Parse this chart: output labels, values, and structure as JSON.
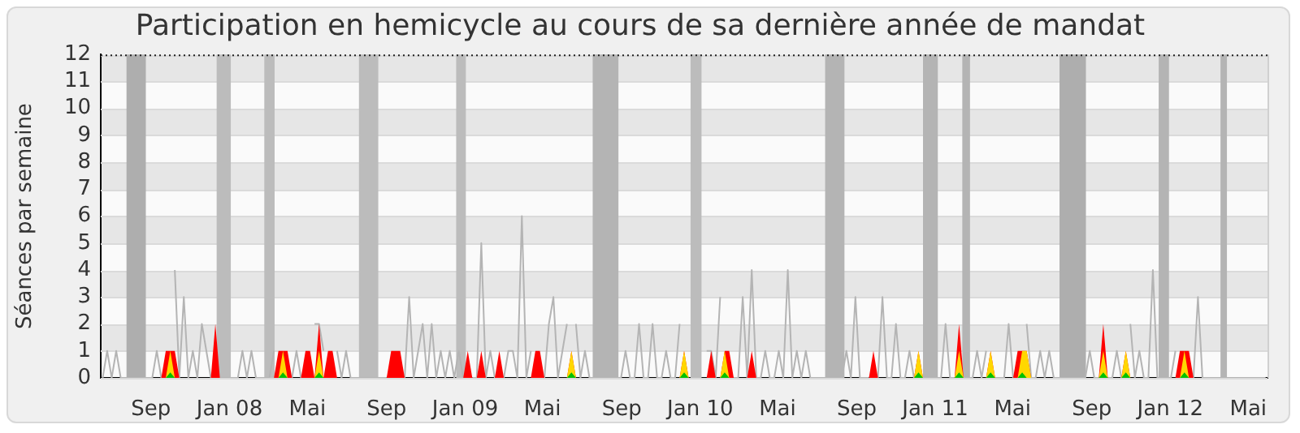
{
  "chart_data": {
    "type": "area",
    "title": "Participation en hemicycle au cours de sa dernière année de mandat",
    "ylabel": "Séances par semaine",
    "x": [
      "2007-06-18",
      "2007-06-25",
      "2007-07-02",
      "2007-07-09",
      "2007-07-16",
      "2007-07-23",
      "2007-07-30",
      "2007-08-06",
      "2007-08-13",
      "2007-08-20",
      "2007-08-27",
      "2007-09-03",
      "2007-09-10",
      "2007-09-17",
      "2007-09-24",
      "2007-10-01",
      "2007-10-08",
      "2007-10-15",
      "2007-10-22",
      "2007-10-29",
      "2007-11-05",
      "2007-11-12",
      "2007-11-19",
      "2007-11-26",
      "2007-12-03",
      "2007-12-10",
      "2007-12-17",
      "2007-12-24",
      "2007-12-31",
      "2008-01-07",
      "2008-01-14",
      "2008-01-21",
      "2008-01-28",
      "2008-02-04",
      "2008-02-11",
      "2008-02-18",
      "2008-02-25",
      "2008-03-03",
      "2008-03-10",
      "2008-03-17",
      "2008-03-24",
      "2008-03-31",
      "2008-04-07",
      "2008-04-14",
      "2008-04-21",
      "2008-04-28",
      "2008-05-05",
      "2008-05-12",
      "2008-05-19",
      "2008-05-26",
      "2008-06-02",
      "2008-06-09",
      "2008-06-16",
      "2008-06-23",
      "2008-06-30",
      "2008-07-07",
      "2008-07-14",
      "2008-07-21",
      "2008-07-28",
      "2008-08-04",
      "2008-08-11",
      "2008-08-18",
      "2008-08-25",
      "2008-09-01",
      "2008-09-08",
      "2008-09-15",
      "2008-09-22",
      "2008-09-29",
      "2008-10-06",
      "2008-10-13",
      "2008-10-20",
      "2008-10-27",
      "2008-11-03",
      "2008-11-10",
      "2008-11-17",
      "2008-11-24",
      "2008-12-01",
      "2008-12-08",
      "2008-12-15",
      "2008-12-22",
      "2008-12-29",
      "2009-01-05",
      "2009-01-12",
      "2009-01-19",
      "2009-01-26",
      "2009-02-02",
      "2009-02-09",
      "2009-02-16",
      "2009-02-23",
      "2009-03-02",
      "2009-03-09",
      "2009-03-16",
      "2009-03-23",
      "2009-03-30",
      "2009-04-06",
      "2009-04-13",
      "2009-04-20",
      "2009-04-27",
      "2009-05-04",
      "2009-05-11",
      "2009-05-18",
      "2009-05-25",
      "2009-06-01",
      "2009-06-08",
      "2009-06-15",
      "2009-06-22",
      "2009-06-29",
      "2009-07-06",
      "2009-07-13",
      "2009-07-20",
      "2009-07-27",
      "2009-08-03",
      "2009-08-10",
      "2009-08-17",
      "2009-08-24",
      "2009-08-31",
      "2009-09-07",
      "2009-09-14",
      "2009-09-21",
      "2009-09-28",
      "2009-10-05",
      "2009-10-12",
      "2009-10-19",
      "2009-10-26",
      "2009-11-02",
      "2009-11-09",
      "2009-11-16",
      "2009-11-23",
      "2009-11-30",
      "2009-12-07",
      "2009-12-14",
      "2009-12-21",
      "2009-12-28",
      "2010-01-04",
      "2010-01-11",
      "2010-01-18",
      "2010-01-25",
      "2010-02-01",
      "2010-02-08",
      "2010-02-15",
      "2010-02-22",
      "2010-03-01",
      "2010-03-08",
      "2010-03-15",
      "2010-03-22",
      "2010-03-29",
      "2010-04-05",
      "2010-04-12",
      "2010-04-19",
      "2010-04-26",
      "2010-05-03",
      "2010-05-10",
      "2010-05-17",
      "2010-05-24",
      "2010-05-31",
      "2010-06-07",
      "2010-06-14",
      "2010-06-21",
      "2010-06-28",
      "2010-07-05",
      "2010-07-12",
      "2010-07-19",
      "2010-07-26",
      "2010-08-02",
      "2010-08-09",
      "2010-08-16",
      "2010-08-23",
      "2010-08-30",
      "2010-09-06",
      "2010-09-13",
      "2010-09-20",
      "2010-09-27",
      "2010-10-04",
      "2010-10-11",
      "2010-10-18",
      "2010-10-25",
      "2010-11-01",
      "2010-11-08",
      "2010-11-15",
      "2010-11-22",
      "2010-11-29",
      "2010-12-06",
      "2010-12-13",
      "2010-12-20",
      "2010-12-27",
      "2011-01-03",
      "2011-01-10",
      "2011-01-17",
      "2011-01-24",
      "2011-01-31",
      "2011-02-07",
      "2011-02-14",
      "2011-02-21",
      "2011-02-28",
      "2011-03-07",
      "2011-03-14",
      "2011-03-21",
      "2011-03-28",
      "2011-04-04",
      "2011-04-11",
      "2011-04-18",
      "2011-04-25",
      "2011-05-02",
      "2011-05-09",
      "2011-05-16",
      "2011-05-23",
      "2011-05-30",
      "2011-06-06",
      "2011-06-13",
      "2011-06-20",
      "2011-06-27",
      "2011-07-04",
      "2011-07-11",
      "2011-07-18",
      "2011-07-25",
      "2011-08-01",
      "2011-08-08",
      "2011-08-15",
      "2011-08-22",
      "2011-08-29",
      "2011-09-05",
      "2011-09-12",
      "2011-09-19",
      "2011-09-26",
      "2011-10-03",
      "2011-10-10",
      "2011-10-17",
      "2011-10-24",
      "2011-10-31",
      "2011-11-07",
      "2011-11-14",
      "2011-11-21",
      "2011-11-28",
      "2011-12-05",
      "2011-12-12",
      "2011-12-19",
      "2011-12-26",
      "2012-01-02",
      "2012-01-09",
      "2012-01-16",
      "2012-01-23",
      "2012-01-30",
      "2012-02-06",
      "2012-02-13",
      "2012-02-20",
      "2012-02-27",
      "2012-03-05",
      "2012-03-12",
      "2012-03-19",
      "2012-03-26",
      "2012-04-02",
      "2012-04-09",
      "2012-04-16",
      "2012-04-23",
      "2012-04-30",
      "2012-05-07",
      "2012-05-14",
      "2012-05-21",
      "2012-05-28"
    ],
    "series": [
      {
        "type": "line",
        "color": "#b4b4b4",
        "values": [
          0,
          1,
          0,
          1,
          0,
          0,
          0,
          0,
          0,
          0,
          0,
          0,
          1,
          0,
          null,
          null,
          4,
          0,
          3,
          0,
          1,
          0,
          2,
          1,
          0,
          null,
          0,
          0,
          0,
          0,
          0,
          1,
          0,
          1,
          0,
          0,
          0,
          0,
          1,
          null,
          null,
          null,
          0,
          1,
          0,
          null,
          null,
          2,
          2,
          1,
          null,
          null,
          1,
          0,
          1,
          0,
          0,
          0,
          0,
          0,
          0,
          0,
          0,
          0,
          null,
          null,
          null,
          0,
          3,
          0,
          1,
          2,
          0,
          2,
          0,
          1,
          0,
          1,
          0,
          1,
          0,
          null,
          0,
          0,
          5,
          0,
          1,
          0,
          null,
          0,
          1,
          1,
          0,
          6,
          0,
          1,
          null,
          null,
          0,
          2,
          3,
          0,
          1,
          2,
          null,
          2,
          0,
          1,
          0,
          0,
          0,
          0,
          0,
          0,
          0,
          0,
          1,
          0,
          0,
          2,
          0,
          0,
          2,
          0,
          0,
          1,
          0,
          0,
          2,
          null,
          null,
          null,
          null,
          null,
          1,
          1,
          0,
          3,
          null,
          null,
          0,
          0,
          3,
          0,
          4,
          0,
          0,
          1,
          0,
          0,
          1,
          0,
          4,
          0,
          1,
          0,
          1,
          0,
          0,
          0,
          0,
          0,
          0,
          0,
          0,
          1,
          0,
          3,
          0,
          0,
          0,
          null,
          0,
          3,
          0,
          0,
          2,
          0,
          0,
          1,
          0,
          null,
          0,
          0,
          0,
          0,
          0,
          2,
          0,
          0,
          null,
          0,
          0,
          0,
          1,
          0,
          1,
          null,
          0,
          0,
          0,
          2,
          0,
          null,
          null,
          2,
          0,
          0,
          1,
          0,
          1,
          0,
          0,
          0,
          0,
          0,
          0,
          0,
          0,
          1,
          0,
          0,
          null,
          0,
          0,
          1,
          0,
          null,
          2,
          0,
          1,
          0,
          0,
          4,
          0,
          0,
          0,
          0,
          1,
          null,
          null,
          null,
          0,
          3,
          0,
          0,
          0,
          0,
          0,
          0,
          0,
          0,
          0,
          0,
          0,
          0,
          0,
          0,
          0
        ]
      },
      {
        "color": "#ff0000",
        "values": [
          0,
          0,
          0,
          0,
          0,
          0,
          0,
          0,
          0,
          0,
          0,
          0,
          0,
          0,
          1,
          1,
          1,
          0,
          0,
          0,
          0,
          0,
          0,
          0,
          0,
          2,
          0,
          0,
          0,
          0,
          0,
          0,
          0,
          0,
          0,
          0,
          0,
          0,
          0,
          1,
          1,
          1,
          0,
          0,
          0,
          1,
          1,
          0,
          2,
          0,
          1,
          1,
          0,
          0,
          0,
          0,
          0,
          0,
          0,
          0,
          0,
          0,
          0,
          0,
          1,
          1,
          1,
          0,
          0,
          0,
          0,
          0,
          0,
          0,
          0,
          0,
          0,
          0,
          0,
          0,
          0,
          1,
          0,
          0,
          1,
          0,
          0,
          0,
          1,
          0,
          0,
          0,
          0,
          0,
          0,
          0,
          1,
          1,
          0,
          0,
          0,
          0,
          0,
          0,
          1,
          0,
          0,
          0,
          0,
          0,
          0,
          0,
          0,
          0,
          0,
          0,
          0,
          0,
          0,
          0,
          0,
          0,
          0,
          0,
          0,
          0,
          0,
          0,
          0,
          1,
          0,
          0,
          0,
          0,
          0,
          1,
          0,
          0,
          1,
          1,
          0,
          0,
          0,
          0,
          1,
          0,
          0,
          0,
          0,
          0,
          0,
          0,
          0,
          0,
          0,
          0,
          0,
          0,
          0,
          0,
          0,
          0,
          0,
          0,
          0,
          0,
          0,
          0,
          0,
          0,
          0,
          1,
          0,
          0,
          0,
          0,
          0,
          0,
          0,
          0,
          0,
          1,
          0,
          0,
          0,
          0,
          0,
          0,
          0,
          0,
          2,
          0,
          0,
          0,
          0,
          0,
          0,
          1,
          0,
          0,
          0,
          0,
          0,
          1,
          1,
          1,
          0,
          0,
          0,
          0,
          0,
          0,
          0,
          0,
          0,
          0,
          0,
          0,
          0,
          0,
          0,
          0,
          2,
          0,
          0,
          0,
          0,
          1,
          0,
          0,
          0,
          0,
          0,
          0,
          0,
          0,
          0,
          0,
          0,
          1,
          1,
          1,
          0,
          0,
          0,
          0,
          0,
          0,
          0,
          0,
          0,
          0,
          0,
          0,
          0,
          0,
          0,
          0,
          0
        ]
      },
      {
        "color": "#ffd700",
        "values": [
          0,
          0,
          0,
          0,
          0,
          0,
          0,
          0,
          0,
          0,
          0,
          0,
          0,
          0,
          0,
          1,
          0,
          0,
          0,
          0,
          0,
          0,
          0,
          0,
          0,
          0,
          0,
          0,
          0,
          0,
          0,
          0,
          0,
          0,
          0,
          0,
          0,
          0,
          0,
          0,
          1,
          0,
          0,
          0,
          0,
          0,
          0,
          0,
          1,
          0,
          0,
          0,
          0,
          0,
          0,
          0,
          0,
          0,
          0,
          0,
          0,
          0,
          0,
          0,
          0,
          0,
          0,
          0,
          0,
          0,
          0,
          0,
          0,
          0,
          0,
          0,
          0,
          0,
          0,
          0,
          0,
          0,
          0,
          0,
          0,
          0,
          0,
          0,
          0,
          0,
          0,
          0,
          0,
          0,
          0,
          0,
          0,
          0,
          0,
          0,
          0,
          0,
          0,
          0,
          1,
          0,
          0,
          0,
          0,
          0,
          0,
          0,
          0,
          0,
          0,
          0,
          0,
          0,
          0,
          0,
          0,
          0,
          0,
          0,
          0,
          0,
          0,
          0,
          0,
          1,
          0,
          0,
          0,
          0,
          0,
          0,
          0,
          0,
          1,
          0,
          0,
          0,
          0,
          0,
          0,
          0,
          0,
          0,
          0,
          0,
          0,
          0,
          0,
          0,
          0,
          0,
          0,
          0,
          0,
          0,
          0,
          0,
          0,
          0,
          0,
          0,
          0,
          0,
          0,
          0,
          0,
          0,
          0,
          0,
          0,
          0,
          0,
          0,
          0,
          0,
          0,
          1,
          0,
          0,
          0,
          0,
          0,
          0,
          0,
          0,
          1,
          0,
          0,
          0,
          0,
          0,
          0,
          1,
          0,
          0,
          0,
          0,
          0,
          0,
          1,
          1,
          0,
          0,
          0,
          0,
          0,
          0,
          0,
          0,
          0,
          0,
          0,
          0,
          0,
          0,
          0,
          0,
          1,
          0,
          0,
          0,
          0,
          1,
          0,
          0,
          0,
          0,
          0,
          0,
          0,
          0,
          0,
          0,
          0,
          0,
          1,
          0,
          0,
          0,
          0,
          0,
          0,
          0,
          0,
          0,
          0,
          0,
          0,
          0,
          0,
          0,
          0,
          0,
          0
        ]
      },
      {
        "color": "#00c000",
        "values": [
          0,
          0,
          0,
          0,
          0,
          0,
          0,
          0,
          0,
          0,
          0,
          0,
          0,
          0,
          0,
          0.2,
          0,
          0,
          0,
          0,
          0,
          0,
          0,
          0,
          0,
          0,
          0,
          0,
          0,
          0,
          0,
          0,
          0,
          0,
          0,
          0,
          0,
          0,
          0,
          0,
          0.2,
          0,
          0,
          0,
          0,
          0,
          0,
          0,
          0.2,
          0,
          0,
          0,
          0,
          0,
          0,
          0,
          0,
          0,
          0,
          0,
          0,
          0,
          0,
          0,
          0,
          0,
          0,
          0,
          0,
          0,
          0,
          0,
          0,
          0,
          0,
          0,
          0,
          0,
          0,
          0,
          0,
          0,
          0,
          0,
          0,
          0,
          0,
          0,
          0,
          0,
          0,
          0,
          0,
          0,
          0,
          0,
          0,
          0,
          0,
          0,
          0,
          0,
          0,
          0,
          0.2,
          0,
          0,
          0,
          0,
          0,
          0,
          0,
          0,
          0,
          0,
          0,
          0,
          0,
          0,
          0,
          0,
          0,
          0,
          0,
          0,
          0,
          0,
          0,
          0,
          0.2,
          0,
          0,
          0,
          0,
          0,
          0,
          0,
          0,
          0.2,
          0,
          0,
          0,
          0,
          0,
          0,
          0,
          0,
          0,
          0,
          0,
          0,
          0,
          0,
          0,
          0,
          0,
          0,
          0,
          0,
          0,
          0,
          0,
          0,
          0,
          0,
          0,
          0,
          0,
          0,
          0,
          0,
          0,
          0,
          0,
          0,
          0,
          0,
          0,
          0,
          0,
          0,
          0.2,
          0,
          0,
          0,
          0,
          0,
          0,
          0,
          0,
          0.2,
          0,
          0,
          0,
          0,
          0,
          0,
          0.2,
          0,
          0,
          0,
          0,
          0,
          0,
          0.2,
          0,
          0,
          0,
          0,
          0,
          0,
          0,
          0,
          0,
          0,
          0,
          0,
          0,
          0,
          0,
          0,
          0,
          0.2,
          0,
          0,
          0,
          0,
          0.2,
          0,
          0,
          0,
          0,
          0,
          0,
          0,
          0,
          0,
          0,
          0,
          0,
          0.2,
          0,
          0,
          0,
          0,
          0,
          0,
          0,
          0,
          0,
          0,
          0,
          0,
          0,
          0,
          0,
          0,
          0,
          0
        ]
      }
    ],
    "xlim": [
      "2007-06-15",
      "2012-05-31"
    ],
    "xticks": [
      {
        "value": "2007-09-01",
        "label": "Sep"
      },
      {
        "value": "2008-01-01",
        "label": "Jan 08"
      },
      {
        "value": "2008-05-01",
        "label": "Mai"
      },
      {
        "value": "2008-09-01",
        "label": "Sep"
      },
      {
        "value": "2009-01-01",
        "label": "Jan 09"
      },
      {
        "value": "2009-05-01",
        "label": "Mai"
      },
      {
        "value": "2009-09-01",
        "label": "Sep"
      },
      {
        "value": "2010-01-01",
        "label": "Jan 10"
      },
      {
        "value": "2010-05-01",
        "label": "Mai"
      },
      {
        "value": "2010-09-01",
        "label": "Sep"
      },
      {
        "value": "2011-01-01",
        "label": "Jan 11"
      },
      {
        "value": "2011-05-01",
        "label": "Mai"
      },
      {
        "value": "2011-09-01",
        "label": "Sep"
      },
      {
        "value": "2012-01-01",
        "label": "Jan 12"
      },
      {
        "value": "2012-05-01",
        "label": "Mai"
      }
    ],
    "ylim": [
      0,
      12
    ],
    "yticks": [
      0,
      1,
      2,
      3,
      4,
      5,
      6,
      7,
      8,
      9,
      10,
      11,
      12
    ],
    "bands": [
      {
        "axis": "x",
        "from": "2007-07-25",
        "to": "2007-08-24",
        "color": "#aeaeae"
      },
      {
        "axis": "x",
        "from": "2007-12-12",
        "to": "2008-01-03",
        "color": "#bcbcbc"
      },
      {
        "axis": "x",
        "from": "2008-02-24",
        "to": "2008-03-11",
        "color": "#bcbcbc"
      },
      {
        "axis": "x",
        "from": "2008-07-20",
        "to": "2008-08-19",
        "color": "#bcbcbc"
      },
      {
        "axis": "x",
        "from": "2008-12-18",
        "to": "2009-01-02",
        "color": "#bcbcbc"
      },
      {
        "axis": "x",
        "from": "2009-07-18",
        "to": "2009-08-27",
        "color": "#b4b4b4"
      },
      {
        "axis": "x",
        "from": "2009-12-17",
        "to": "2010-01-03",
        "color": "#bcbcbc"
      },
      {
        "axis": "x",
        "from": "2010-07-14",
        "to": "2010-08-13",
        "color": "#b4b4b4"
      },
      {
        "axis": "x",
        "from": "2010-12-13",
        "to": "2011-01-05",
        "color": "#b4b4b4"
      },
      {
        "axis": "x",
        "from": "2011-02-12",
        "to": "2011-02-24",
        "color": "#b4b4b4"
      },
      {
        "axis": "x",
        "from": "2011-07-13",
        "to": "2011-08-23",
        "color": "#aeaeae"
      },
      {
        "axis": "x",
        "from": "2011-12-14",
        "to": "2011-12-30",
        "color": "#b4b4b4"
      },
      {
        "axis": "x",
        "from": "2012-03-19",
        "to": "2012-03-29",
        "color": "#b4b4b4"
      }
    ],
    "grid": "y",
    "legend": false,
    "marker": "none"
  }
}
